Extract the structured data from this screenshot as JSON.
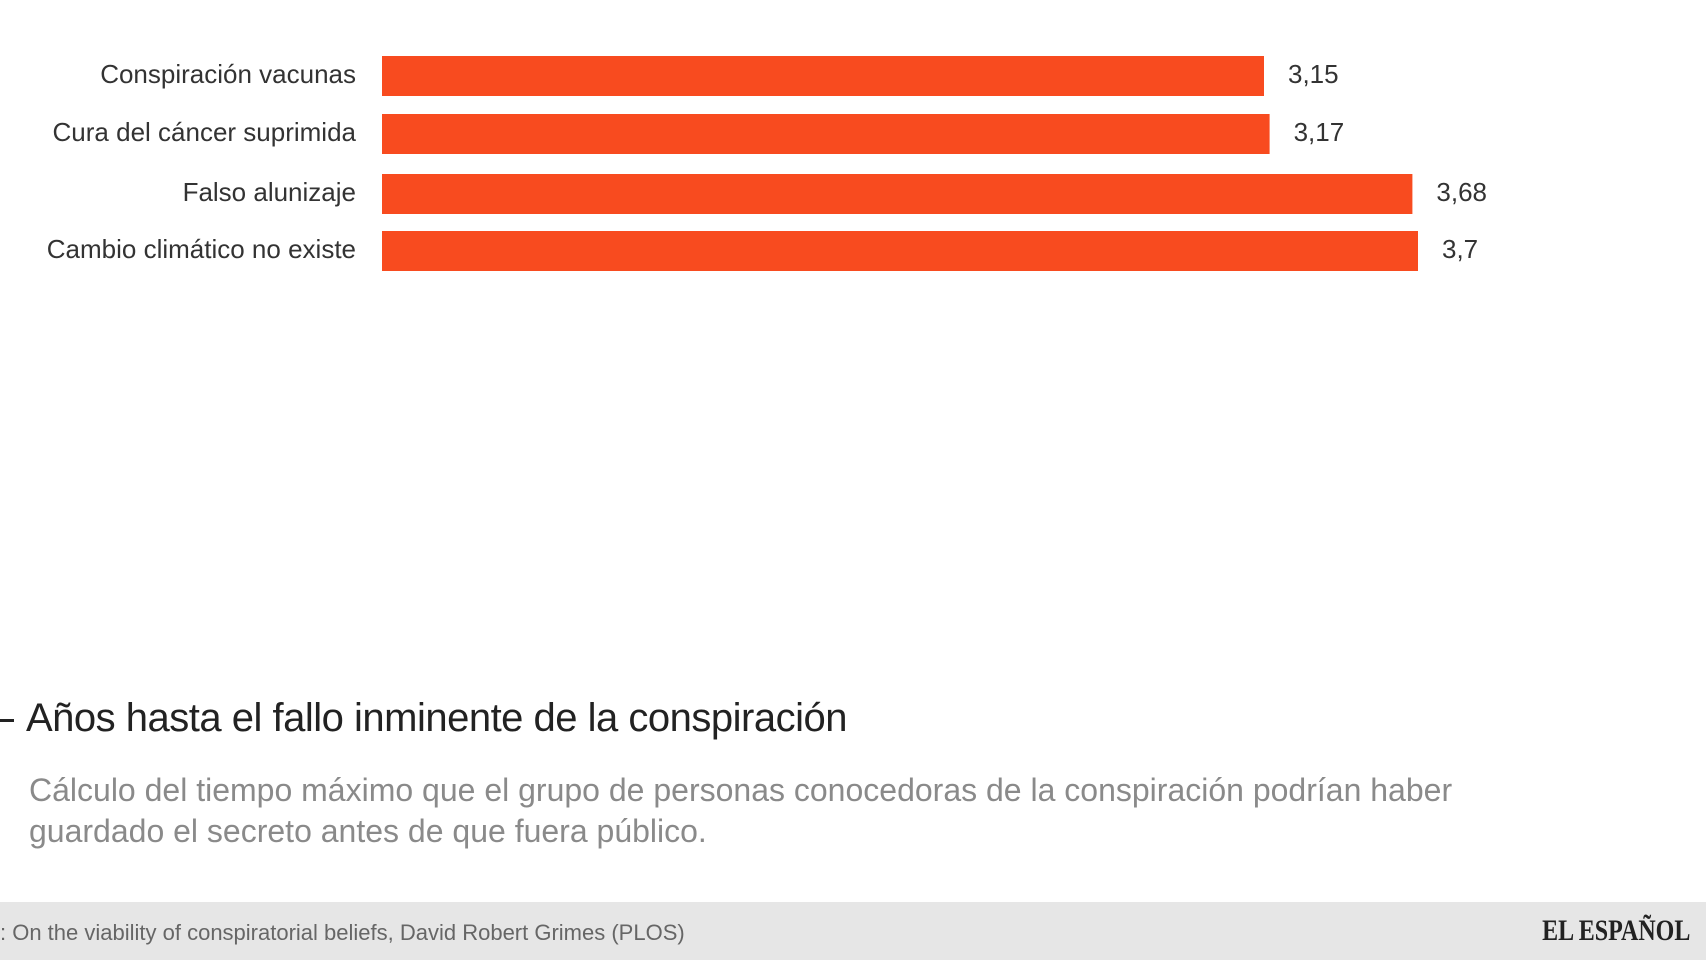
{
  "chart_data": {
    "type": "bar",
    "orientation": "horizontal",
    "categories": [
      "Conspiración vacunas",
      "Cura del cáncer suprimida",
      "Falso alunizaje",
      "Cambio climático no existe"
    ],
    "values": [
      3.15,
      3.17,
      3.68,
      3.7
    ],
    "value_labels": [
      "3,15",
      "3,17",
      "3,68",
      "3,7"
    ],
    "color": "#f84b1f",
    "title": "Años hasta el fallo inminente de la conspiración",
    "subtitle": "Cálculo del tiempo máximo que el grupo de personas conocedoras de la conspiración podrían haber guardado el secreto antes de que fuera público.",
    "source": ": On the viability of conspiratorial beliefs, David Robert Grimes (PLOS)",
    "logo": "EL ESPAÑOL"
  }
}
